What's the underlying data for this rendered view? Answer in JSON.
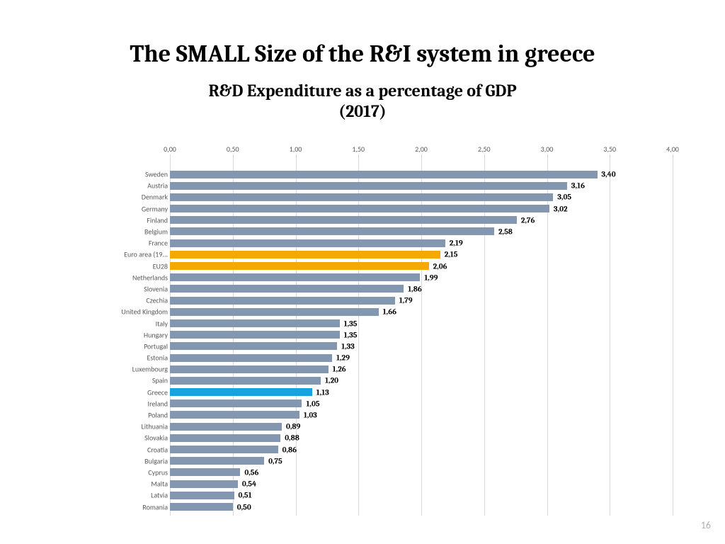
{
  "title": "The SMALL Size of the R&I system in greece",
  "subtitle_l1": "R&D Expenditure as a percentage of GDP",
  "subtitle_l2": "(2017)",
  "page_number": "16",
  "chart": {
    "type": "bar",
    "xmin": 0.0,
    "xmax": 4.0,
    "xtick_step": 0.5,
    "xtick_labels": [
      "0,00",
      "0,50",
      "1,00",
      "1,50",
      "2,00",
      "2,50",
      "3,00",
      "3,50",
      "4,00"
    ],
    "bar_default_color": "#8497b0",
    "highlight_colors": {
      "orange": "#f2a900",
      "blue": "#1ba1e2"
    },
    "grid_color": "#d9d9d9",
    "background_color": "#ffffff",
    "label_color": "#595959",
    "value_label_fontweight": "bold",
    "value_label_fontsize": 11,
    "axis_label_fontsize": 10,
    "items": [
      {
        "label": "Sweden",
        "value": 3.4,
        "display": "3,40",
        "color": "#8497b0"
      },
      {
        "label": "Austria",
        "value": 3.16,
        "display": "3,16",
        "color": "#8497b0"
      },
      {
        "label": "Denmark",
        "value": 3.05,
        "display": "3,05",
        "color": "#8497b0"
      },
      {
        "label": "Germany",
        "value": 3.02,
        "display": "3,02",
        "color": "#8497b0"
      },
      {
        "label": "Finland",
        "value": 2.76,
        "display": "2,76",
        "color": "#8497b0"
      },
      {
        "label": "Belgium",
        "value": 2.58,
        "display": "2,58",
        "color": "#8497b0"
      },
      {
        "label": "France",
        "value": 2.19,
        "display": "2,19",
        "color": "#8497b0"
      },
      {
        "label": "Euro area (19...",
        "value": 2.15,
        "display": "2,15",
        "color": "#f2a900"
      },
      {
        "label": "EU28",
        "value": 2.06,
        "display": "2,06",
        "color": "#f2a900"
      },
      {
        "label": "Netherlands",
        "value": 1.99,
        "display": "1,99",
        "color": "#8497b0"
      },
      {
        "label": "Slovenia",
        "value": 1.86,
        "display": "1,86",
        "color": "#8497b0"
      },
      {
        "label": "Czechia",
        "value": 1.79,
        "display": "1,79",
        "color": "#8497b0"
      },
      {
        "label": "United Kingdom",
        "value": 1.66,
        "display": "1,66",
        "color": "#8497b0"
      },
      {
        "label": "Italy",
        "value": 1.35,
        "display": "1,35",
        "color": "#8497b0"
      },
      {
        "label": "Hungary",
        "value": 1.35,
        "display": "1,35",
        "color": "#8497b0"
      },
      {
        "label": "Portugal",
        "value": 1.33,
        "display": "1,33",
        "color": "#8497b0"
      },
      {
        "label": "Estonia",
        "value": 1.29,
        "display": "1,29",
        "color": "#8497b0"
      },
      {
        "label": "Luxembourg",
        "value": 1.26,
        "display": "1,26",
        "color": "#8497b0"
      },
      {
        "label": "Spain",
        "value": 1.2,
        "display": "1,20",
        "color": "#8497b0"
      },
      {
        "label": "Greece",
        "value": 1.13,
        "display": "1,13",
        "color": "#1ba1e2"
      },
      {
        "label": "Ireland",
        "value": 1.05,
        "display": "1,05",
        "color": "#8497b0"
      },
      {
        "label": "Poland",
        "value": 1.03,
        "display": "1,03",
        "color": "#8497b0"
      },
      {
        "label": "Lithuania",
        "value": 0.89,
        "display": "0,89",
        "color": "#8497b0"
      },
      {
        "label": "Slovakia",
        "value": 0.88,
        "display": "0,88",
        "color": "#8497b0"
      },
      {
        "label": "Croatia",
        "value": 0.86,
        "display": "0,86",
        "color": "#8497b0"
      },
      {
        "label": "Bulgaria",
        "value": 0.75,
        "display": "0,75",
        "color": "#8497b0"
      },
      {
        "label": "Cyprus",
        "value": 0.56,
        "display": "0,56",
        "color": "#8497b0"
      },
      {
        "label": "Malta",
        "value": 0.54,
        "display": "0,54",
        "color": "#8497b0"
      },
      {
        "label": "Latvia",
        "value": 0.51,
        "display": "0,51",
        "color": "#8497b0"
      },
      {
        "label": "Romania",
        "value": 0.5,
        "display": "0,50",
        "color": "#8497b0"
      }
    ]
  }
}
